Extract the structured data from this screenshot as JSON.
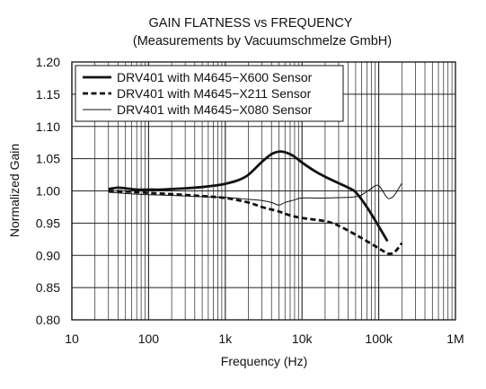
{
  "chart_data": {
    "type": "line",
    "title": "GAIN FLATNESS vs FREQUENCY",
    "subtitle": "(Measurements by Vacuumschmelze GmbH)",
    "xlabel": "Frequency (Hz)",
    "ylabel": "Normalized Gain",
    "xscale": "log",
    "xlim": [
      10,
      1000000
    ],
    "ylim": [
      0.8,
      1.2
    ],
    "grid": true,
    "legend_position": "top-left",
    "x_ticks": [
      {
        "value": 10,
        "label": "10"
      },
      {
        "value": 100,
        "label": "100"
      },
      {
        "value": 1000,
        "label": "1k"
      },
      {
        "value": 10000,
        "label": "10k"
      },
      {
        "value": 100000,
        "label": "100k"
      },
      {
        "value": 1000000,
        "label": "1M"
      }
    ],
    "y_ticks": [
      {
        "value": 0.8,
        "label": "0.80"
      },
      {
        "value": 0.85,
        "label": "0.85"
      },
      {
        "value": 0.9,
        "label": "0.90"
      },
      {
        "value": 0.95,
        "label": "0.95"
      },
      {
        "value": 1.0,
        "label": "1.00"
      },
      {
        "value": 1.05,
        "label": "1.05"
      },
      {
        "value": 1.1,
        "label": "1.10"
      },
      {
        "value": 1.15,
        "label": "1.15"
      },
      {
        "value": 1.2,
        "label": "1.20"
      }
    ],
    "series": [
      {
        "name": "DRV401 with M4645−X600 Sensor",
        "style": "thick-solid",
        "color": "#111111",
        "x": [
          30,
          40,
          50,
          70,
          100,
          150,
          200,
          300,
          500,
          700,
          1000,
          1500,
          2000,
          3000,
          4000,
          5000,
          6000,
          7000,
          8000,
          10000,
          15000,
          20000,
          30000,
          40000,
          50000,
          70000,
          100000,
          130000
        ],
        "y": [
          1.003,
          1.005,
          1.004,
          1.002,
          1.002,
          1.002,
          1.003,
          1.004,
          1.006,
          1.008,
          1.011,
          1.017,
          1.025,
          1.045,
          1.057,
          1.061,
          1.06,
          1.057,
          1.053,
          1.044,
          1.03,
          1.022,
          1.012,
          1.005,
          0.998,
          0.975,
          0.945,
          0.922
        ]
      },
      {
        "name": "DRV401 with M4645−X211 Sensor",
        "style": "thick-dashed",
        "color": "#111111",
        "x": [
          30,
          50,
          100,
          200,
          500,
          1000,
          2000,
          3000,
          5000,
          7000,
          10000,
          20000,
          30000,
          50000,
          70000,
          100000,
          130000,
          150000,
          170000,
          200000
        ],
        "y": [
          1.0,
          0.999,
          0.997,
          0.995,
          0.992,
          0.989,
          0.982,
          0.975,
          0.968,
          0.962,
          0.958,
          0.953,
          0.946,
          0.932,
          0.922,
          0.911,
          0.903,
          0.903,
          0.908,
          0.919
        ]
      },
      {
        "name": "DRV401 with M4645−X080 Sensor",
        "style": "thin-solid",
        "color": "#111111",
        "x": [
          30,
          50,
          100,
          200,
          500,
          1000,
          2000,
          3000,
          4000,
          5000,
          6000,
          8000,
          10000,
          20000,
          50000,
          70000,
          90000,
          100000,
          110000,
          130000,
          150000,
          170000,
          200000
        ],
        "y": [
          0.998,
          0.996,
          0.994,
          0.993,
          0.991,
          0.99,
          0.987,
          0.985,
          0.982,
          0.978,
          0.982,
          0.986,
          0.989,
          0.989,
          0.991,
          0.999,
          1.008,
          1.008,
          1.002,
          0.989,
          0.99,
          0.998,
          1.012
        ]
      }
    ]
  }
}
